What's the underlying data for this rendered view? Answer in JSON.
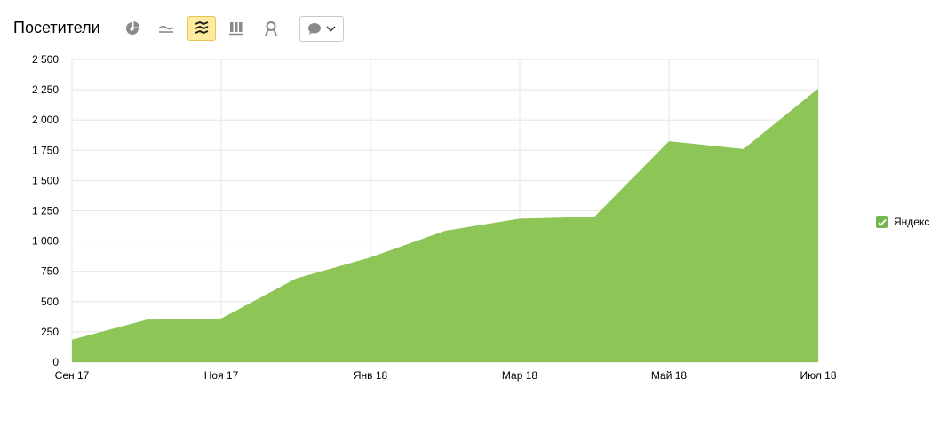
{
  "header": {
    "title": "Посетители",
    "buttons": [
      {
        "icon": "pie-chart-icon",
        "active": false
      },
      {
        "icon": "line-chart-icon",
        "active": false
      },
      {
        "icon": "area-chart-icon",
        "active": true
      },
      {
        "icon": "bar-chart-icon",
        "active": false
      },
      {
        "icon": "map-pin-icon",
        "active": false
      }
    ],
    "notes_icon": "speech-bubble-icon"
  },
  "colors": {
    "area_fill": "#8dc556",
    "legend_check": "#73b84a",
    "grid": "#e5e5e5",
    "active_button_bg": "#ffeba0"
  },
  "chart_data": {
    "type": "area",
    "x": [
      "Сен 17",
      "Окт 17",
      "Ноя 17",
      "Дек 17",
      "Янв 18",
      "Фев 18",
      "Мар 18",
      "Апр 18",
      "Май 18",
      "Июн 18",
      "Июл 18"
    ],
    "x_tick_labels": [
      "Сен 17",
      "Ноя 17",
      "Янв 18",
      "Мар 18",
      "Май 18",
      "Июл 18"
    ],
    "series": [
      {
        "name": "Яндекс",
        "values": [
          185,
          350,
          360,
          690,
          865,
          1085,
          1185,
          1200,
          1825,
          1760,
          2260
        ]
      }
    ],
    "ylim": [
      0,
      2500
    ],
    "y_ticks": [
      0,
      250,
      500,
      750,
      1000,
      1250,
      1500,
      1750,
      2000,
      2250,
      2500
    ],
    "y_tick_labels": [
      "0",
      "250",
      "500",
      "750",
      "1 000",
      "1 250",
      "1 500",
      "1 750",
      "2 000",
      "2 250",
      "2 500"
    ],
    "grid": true,
    "legend_position": "right"
  }
}
